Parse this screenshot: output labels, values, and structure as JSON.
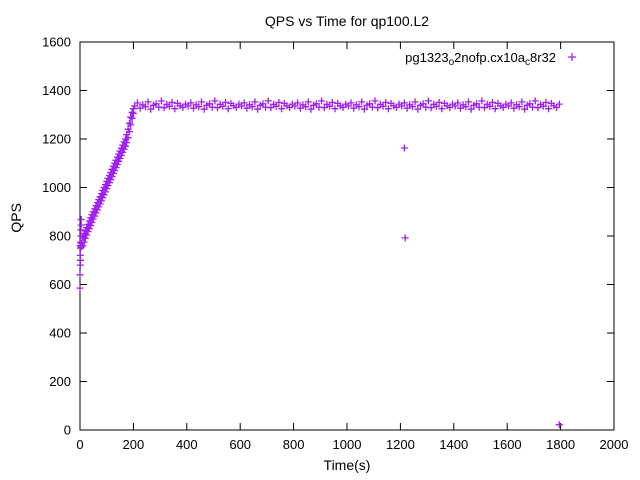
{
  "colors": {
    "marker": "#a020f0",
    "axis": "#000000",
    "background": "#ffffff"
  },
  "chart_data": {
    "type": "scatter",
    "title": "QPS vs Time for qp100.L2",
    "xlabel": "Time(s)",
    "ylabel": "QPS",
    "xlim": [
      0,
      2000
    ],
    "ylim": [
      0,
      1600
    ],
    "xticks": [
      0,
      200,
      400,
      600,
      800,
      1000,
      1200,
      1400,
      1600,
      1800,
      2000
    ],
    "yticks": [
      0,
      200,
      400,
      600,
      800,
      1000,
      1200,
      1400,
      1600
    ],
    "grid": false,
    "legend": {
      "position": "top-right",
      "entries": [
        {
          "name": "pg1323_o2nofp.cx10a_c8r32",
          "label_parts": [
            {
              "t": "pg1323"
            },
            {
              "s": "o"
            },
            {
              "t": "2nofp.cx10a"
            },
            {
              "s": "c"
            },
            {
              "t": "8r32"
            }
          ],
          "marker": "plus",
          "color": "#a020f0"
        }
      ]
    },
    "series": [
      {
        "name": "pg1323_o2nofp.cx10a_c8r32",
        "marker": "plus",
        "color": "#a020f0",
        "points": [
          [
            0,
            585
          ],
          [
            0,
            640
          ],
          [
            1,
            680
          ],
          [
            1,
            720
          ],
          [
            2,
            750
          ],
          [
            2,
            775
          ],
          [
            3,
            800
          ],
          [
            3,
            825
          ],
          [
            4,
            845
          ],
          [
            4,
            868
          ],
          [
            2,
            700
          ],
          [
            1,
            760
          ],
          [
            5,
            755
          ],
          [
            6,
            770
          ],
          [
            10,
            760
          ],
          [
            10,
            795
          ],
          [
            15,
            775
          ],
          [
            15,
            810
          ],
          [
            20,
            790
          ],
          [
            20,
            822
          ],
          [
            25,
            805
          ],
          [
            25,
            835
          ],
          [
            30,
            818
          ],
          [
            30,
            848
          ],
          [
            35,
            830
          ],
          [
            35,
            862
          ],
          [
            40,
            843
          ],
          [
            40,
            875
          ],
          [
            45,
            856
          ],
          [
            45,
            888
          ],
          [
            50,
            870
          ],
          [
            50,
            900
          ],
          [
            55,
            882
          ],
          [
            55,
            912
          ],
          [
            60,
            895
          ],
          [
            60,
            925
          ],
          [
            65,
            908
          ],
          [
            65,
            938
          ],
          [
            70,
            920
          ],
          [
            70,
            950
          ],
          [
            75,
            932
          ],
          [
            75,
            962
          ],
          [
            80,
            945
          ],
          [
            80,
            975
          ],
          [
            85,
            958
          ],
          [
            85,
            988
          ],
          [
            90,
            970
          ],
          [
            90,
            1000
          ],
          [
            95,
            982
          ],
          [
            95,
            1012
          ],
          [
            100,
            995
          ],
          [
            100,
            1025
          ],
          [
            105,
            1008
          ],
          [
            105,
            1038
          ],
          [
            110,
            1020
          ],
          [
            110,
            1050
          ],
          [
            115,
            1032
          ],
          [
            115,
            1062
          ],
          [
            120,
            1045
          ],
          [
            120,
            1075
          ],
          [
            125,
            1058
          ],
          [
            125,
            1088
          ],
          [
            130,
            1070
          ],
          [
            130,
            1100
          ],
          [
            135,
            1082
          ],
          [
            135,
            1112
          ],
          [
            140,
            1095
          ],
          [
            140,
            1125
          ],
          [
            145,
            1108
          ],
          [
            145,
            1138
          ],
          [
            150,
            1120
          ],
          [
            150,
            1150
          ],
          [
            155,
            1132
          ],
          [
            155,
            1162
          ],
          [
            160,
            1145
          ],
          [
            160,
            1175
          ],
          [
            165,
            1158
          ],
          [
            165,
            1188
          ],
          [
            170,
            1170
          ],
          [
            170,
            1200
          ],
          [
            175,
            1185
          ],
          [
            175,
            1218
          ],
          [
            180,
            1205
          ],
          [
            180,
            1240
          ],
          [
            185,
            1230
          ],
          [
            185,
            1265
          ],
          [
            190,
            1258
          ],
          [
            190,
            1290
          ],
          [
            195,
            1285
          ],
          [
            195,
            1310
          ],
          [
            200,
            1305
          ],
          [
            200,
            1325
          ],
          [
            205,
            1336
          ],
          [
            215,
            1349
          ],
          [
            225,
            1327
          ],
          [
            235,
            1341
          ],
          [
            245,
            1333
          ],
          [
            255,
            1353
          ],
          [
            265,
            1323
          ],
          [
            275,
            1339
          ],
          [
            285,
            1345
          ],
          [
            295,
            1331
          ],
          [
            305,
            1357
          ],
          [
            315,
            1329
          ],
          [
            325,
            1343
          ],
          [
            335,
            1335
          ],
          [
            345,
            1351
          ],
          [
            355,
            1325
          ],
          [
            365,
            1347
          ],
          [
            375,
            1337
          ],
          [
            385,
            1330
          ],
          [
            395,
            1344
          ],
          [
            405,
            1336
          ],
          [
            415,
            1349
          ],
          [
            425,
            1327
          ],
          [
            435,
            1341
          ],
          [
            445,
            1333
          ],
          [
            455,
            1353
          ],
          [
            465,
            1323
          ],
          [
            475,
            1339
          ],
          [
            485,
            1345
          ],
          [
            495,
            1331
          ],
          [
            505,
            1357
          ],
          [
            515,
            1329
          ],
          [
            525,
            1343
          ],
          [
            535,
            1335
          ],
          [
            545,
            1351
          ],
          [
            555,
            1325
          ],
          [
            565,
            1347
          ],
          [
            575,
            1337
          ],
          [
            585,
            1330
          ],
          [
            595,
            1344
          ],
          [
            605,
            1336
          ],
          [
            615,
            1349
          ],
          [
            625,
            1327
          ],
          [
            635,
            1341
          ],
          [
            645,
            1333
          ],
          [
            655,
            1353
          ],
          [
            665,
            1323
          ],
          [
            675,
            1339
          ],
          [
            685,
            1345
          ],
          [
            695,
            1331
          ],
          [
            705,
            1357
          ],
          [
            715,
            1329
          ],
          [
            725,
            1343
          ],
          [
            735,
            1335
          ],
          [
            745,
            1351
          ],
          [
            755,
            1325
          ],
          [
            765,
            1347
          ],
          [
            775,
            1337
          ],
          [
            785,
            1330
          ],
          [
            795,
            1344
          ],
          [
            805,
            1336
          ],
          [
            815,
            1349
          ],
          [
            825,
            1327
          ],
          [
            835,
            1341
          ],
          [
            845,
            1333
          ],
          [
            855,
            1353
          ],
          [
            865,
            1323
          ],
          [
            875,
            1339
          ],
          [
            885,
            1345
          ],
          [
            895,
            1331
          ],
          [
            905,
            1357
          ],
          [
            915,
            1329
          ],
          [
            925,
            1343
          ],
          [
            935,
            1335
          ],
          [
            945,
            1351
          ],
          [
            955,
            1325
          ],
          [
            965,
            1347
          ],
          [
            975,
            1337
          ],
          [
            985,
            1330
          ],
          [
            995,
            1344
          ],
          [
            1005,
            1336
          ],
          [
            1015,
            1349
          ],
          [
            1025,
            1327
          ],
          [
            1035,
            1341
          ],
          [
            1045,
            1333
          ],
          [
            1055,
            1353
          ],
          [
            1065,
            1323
          ],
          [
            1075,
            1339
          ],
          [
            1085,
            1345
          ],
          [
            1095,
            1331
          ],
          [
            1105,
            1357
          ],
          [
            1115,
            1329
          ],
          [
            1125,
            1343
          ],
          [
            1135,
            1335
          ],
          [
            1145,
            1351
          ],
          [
            1155,
            1325
          ],
          [
            1165,
            1347
          ],
          [
            1175,
            1337
          ],
          [
            1185,
            1330
          ],
          [
            1195,
            1344
          ],
          [
            1205,
            1336
          ],
          [
            1215,
            1349
          ],
          [
            1225,
            1327
          ],
          [
            1235,
            1341
          ],
          [
            1245,
            1333
          ],
          [
            1255,
            1353
          ],
          [
            1265,
            1323
          ],
          [
            1275,
            1339
          ],
          [
            1285,
            1345
          ],
          [
            1295,
            1331
          ],
          [
            1305,
            1357
          ],
          [
            1315,
            1329
          ],
          [
            1325,
            1343
          ],
          [
            1335,
            1335
          ],
          [
            1345,
            1351
          ],
          [
            1355,
            1325
          ],
          [
            1365,
            1347
          ],
          [
            1375,
            1337
          ],
          [
            1385,
            1330
          ],
          [
            1395,
            1344
          ],
          [
            1405,
            1336
          ],
          [
            1415,
            1349
          ],
          [
            1425,
            1327
          ],
          [
            1435,
            1341
          ],
          [
            1445,
            1333
          ],
          [
            1455,
            1353
          ],
          [
            1465,
            1323
          ],
          [
            1475,
            1339
          ],
          [
            1485,
            1345
          ],
          [
            1495,
            1331
          ],
          [
            1505,
            1357
          ],
          [
            1515,
            1329
          ],
          [
            1525,
            1343
          ],
          [
            1535,
            1335
          ],
          [
            1545,
            1351
          ],
          [
            1555,
            1325
          ],
          [
            1565,
            1347
          ],
          [
            1575,
            1337
          ],
          [
            1585,
            1330
          ],
          [
            1595,
            1344
          ],
          [
            1605,
            1336
          ],
          [
            1615,
            1349
          ],
          [
            1625,
            1327
          ],
          [
            1635,
            1341
          ],
          [
            1645,
            1333
          ],
          [
            1655,
            1353
          ],
          [
            1665,
            1323
          ],
          [
            1675,
            1339
          ],
          [
            1685,
            1345
          ],
          [
            1695,
            1331
          ],
          [
            1705,
            1357
          ],
          [
            1715,
            1329
          ],
          [
            1725,
            1343
          ],
          [
            1735,
            1335
          ],
          [
            1745,
            1351
          ],
          [
            1755,
            1325
          ],
          [
            1765,
            1347
          ],
          [
            1775,
            1337
          ],
          [
            1785,
            1330
          ],
          [
            1795,
            1344
          ],
          [
            1215,
            1163
          ],
          [
            1218,
            792
          ],
          [
            1795,
            22
          ]
        ]
      }
    ]
  }
}
